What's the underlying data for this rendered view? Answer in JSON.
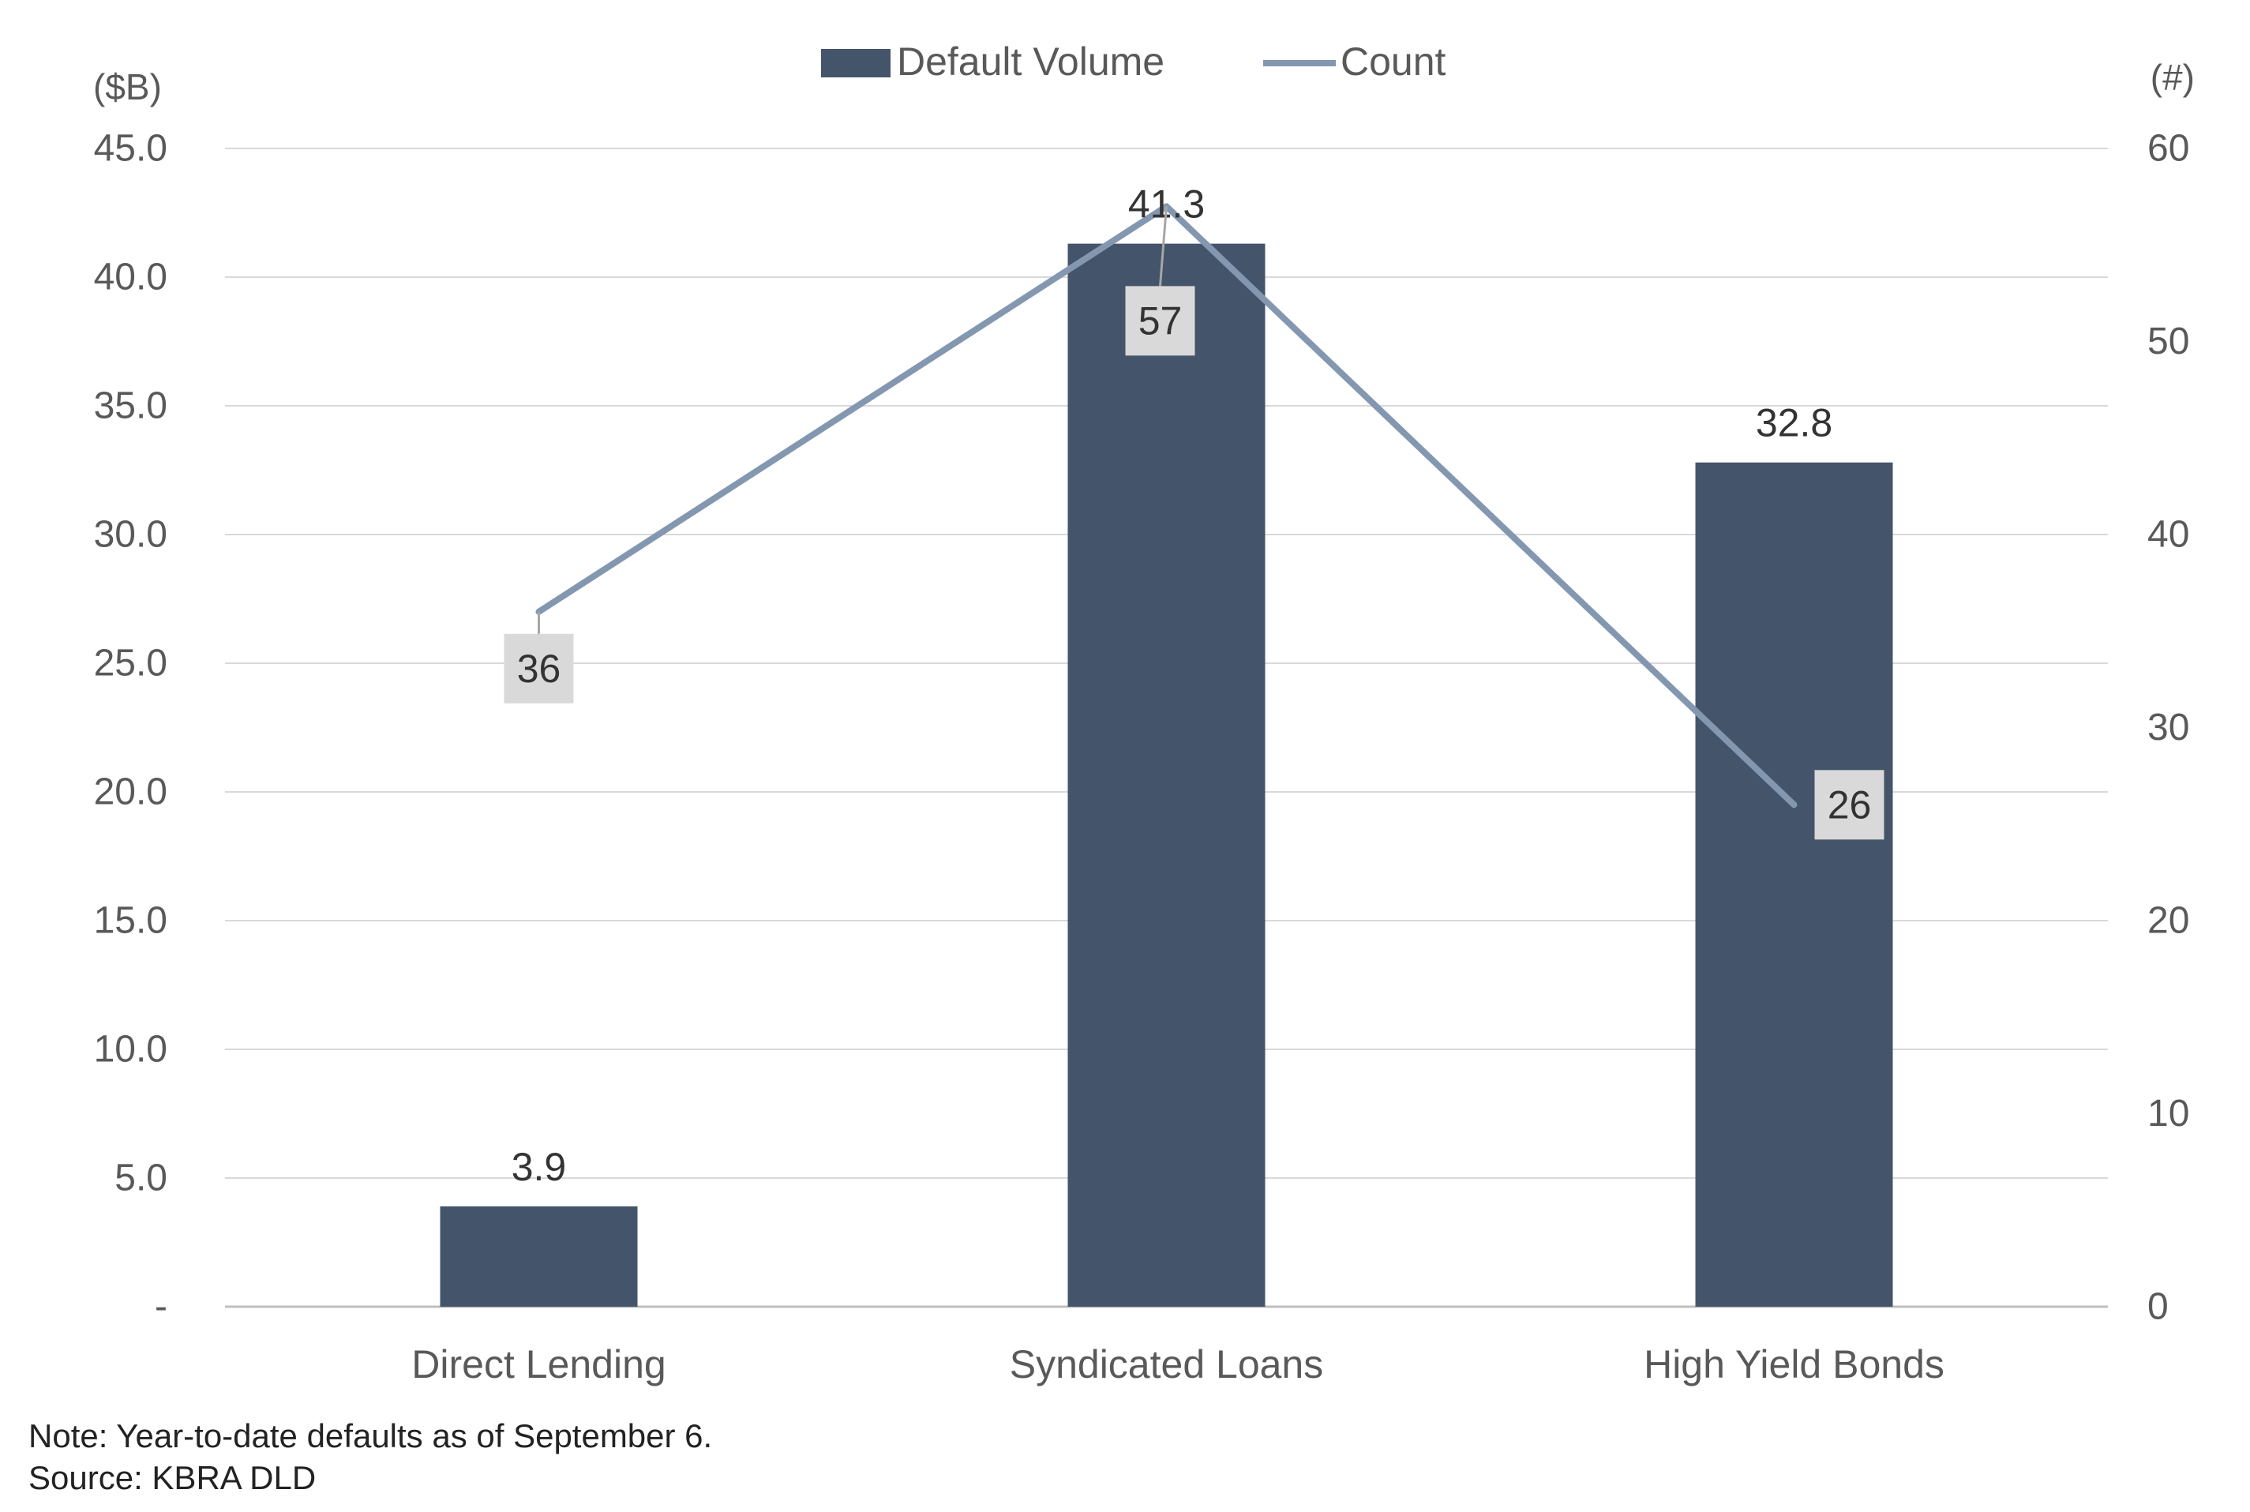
{
  "chart_data": {
    "type": "bar",
    "categories": [
      "Direct Lending",
      "Syndicated Loans",
      "High Yield Bonds"
    ],
    "series": [
      {
        "name": "Default Volume",
        "type": "bar",
        "axis": "left",
        "values": [
          3.9,
          41.3,
          32.8
        ],
        "labels": [
          "3.9",
          "41.3",
          "32.8"
        ],
        "color": "#44546A"
      },
      {
        "name": "Count",
        "type": "line",
        "axis": "right",
        "values": [
          36,
          57,
          26
        ],
        "labels": [
          "36",
          "57",
          "26"
        ],
        "color": "#8497B0"
      }
    ],
    "y_left": {
      "unit": "($B)",
      "range": [
        0,
        45
      ],
      "ticks": [
        0,
        5,
        10,
        15,
        20,
        25,
        30,
        35,
        40,
        45
      ],
      "tick_labels": [
        "-",
        "5.0",
        "10.0",
        "15.0",
        "20.0",
        "25.0",
        "30.0",
        "35.0",
        "40.0",
        "45.0"
      ]
    },
    "y_right": {
      "unit": "(#)",
      "range": [
        0,
        60
      ],
      "ticks": [
        0,
        10,
        20,
        30,
        40,
        50,
        60
      ],
      "tick_labels": [
        "0",
        "10",
        "20",
        "30",
        "40",
        "50",
        "60"
      ]
    },
    "grid": true,
    "legend_position": "top-center",
    "data_label_fill": "#D9D9D9"
  },
  "notes": {
    "note": "Note: Year-to-date defaults as of September 6.",
    "source": "Source: KBRA DLD"
  }
}
